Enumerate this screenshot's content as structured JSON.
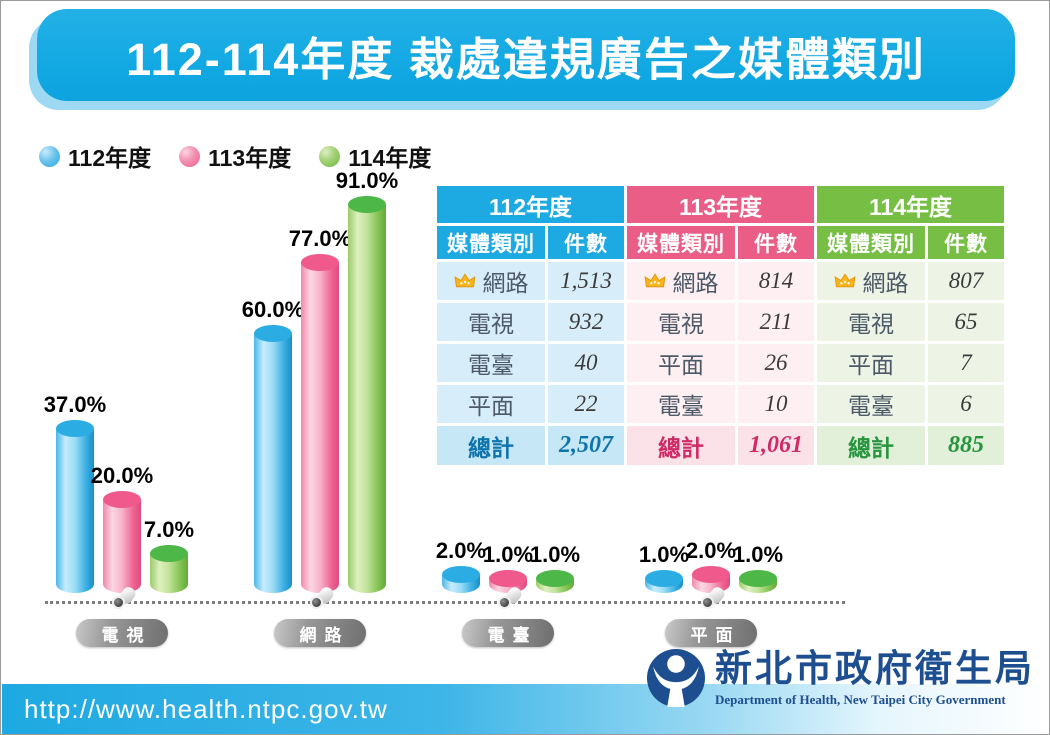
{
  "title": "112-114年度 裁處違規廣告之媒體類別",
  "legend": [
    {
      "label": "112年度",
      "color": "#2aa9e0"
    },
    {
      "label": "113年度",
      "color": "#ee5d8c"
    },
    {
      "label": "114年度",
      "color": "#6cbb45"
    }
  ],
  "chart_data": {
    "type": "bar",
    "title": "112-114年度 裁處違規廣告之媒體類別",
    "categories": [
      "電視",
      "網路",
      "電臺",
      "平面"
    ],
    "series": [
      {
        "name": "112年度",
        "color": "#2aa9e0",
        "values": [
          37.0,
          60.0,
          2.0,
          1.0
        ]
      },
      {
        "name": "113年度",
        "color": "#ee5d8c",
        "values": [
          20.0,
          77.0,
          1.0,
          2.0
        ]
      },
      {
        "name": "114年度",
        "color": "#6cbb45",
        "values": [
          7.0,
          91.0,
          1.0,
          1.0
        ]
      }
    ],
    "value_suffix": "%",
    "ylim": [
      0,
      100
    ],
    "grid": false,
    "legend_position": "top-left",
    "baseline_style": "dotted"
  },
  "table": {
    "groups": [
      {
        "year": "112年度",
        "col_headers": [
          "媒體類別",
          "件數"
        ],
        "rows": [
          {
            "label": "網路",
            "value": "1,513",
            "crown": true
          },
          {
            "label": "電視",
            "value": "932",
            "crown": false
          },
          {
            "label": "電臺",
            "value": "40",
            "crown": false
          },
          {
            "label": "平面",
            "value": "22",
            "crown": false
          }
        ],
        "total_label": "總計",
        "total_value": "2,507",
        "colors": {
          "header": "#1da9e2",
          "body_bg": "#d7edf9",
          "total_bg": "#c6e7f6",
          "total_text": "#0f74ac"
        }
      },
      {
        "year": "113年度",
        "col_headers": [
          "媒體類別",
          "件數"
        ],
        "rows": [
          {
            "label": "網路",
            "value": "814",
            "crown": true
          },
          {
            "label": "電視",
            "value": "211",
            "crown": false
          },
          {
            "label": "平面",
            "value": "26",
            "crown": false
          },
          {
            "label": "電臺",
            "value": "10",
            "crown": false
          }
        ],
        "total_label": "總計",
        "total_value": "1,061",
        "colors": {
          "header": "#e95d86",
          "body_bg": "#fdeff2",
          "total_bg": "#fbe2e9",
          "total_text": "#d02a66"
        }
      },
      {
        "year": "114年度",
        "col_headers": [
          "媒體類別",
          "件數"
        ],
        "rows": [
          {
            "label": "網路",
            "value": "807",
            "crown": true
          },
          {
            "label": "電視",
            "value": "65",
            "crown": false
          },
          {
            "label": "平面",
            "value": "7",
            "crown": false
          },
          {
            "label": "電臺",
            "value": "6",
            "crown": false
          }
        ],
        "total_label": "總計",
        "total_value": "885",
        "colors": {
          "header": "#77bf44",
          "body_bg": "#edf4e6",
          "total_bg": "#e2efd9",
          "total_text": "#27953e"
        }
      }
    ]
  },
  "icons": {
    "top_rank": "crown-icon",
    "axis_marker": "pushpin-icon",
    "logo": "doh-person-icon"
  },
  "footer": {
    "url": "http://www.health.ntpc.gov.tw",
    "org_name": "新北市政府衛生局",
    "org_name_en": "Department of Health, New Taipei City Government",
    "logo_color": "#1d4e8f"
  }
}
